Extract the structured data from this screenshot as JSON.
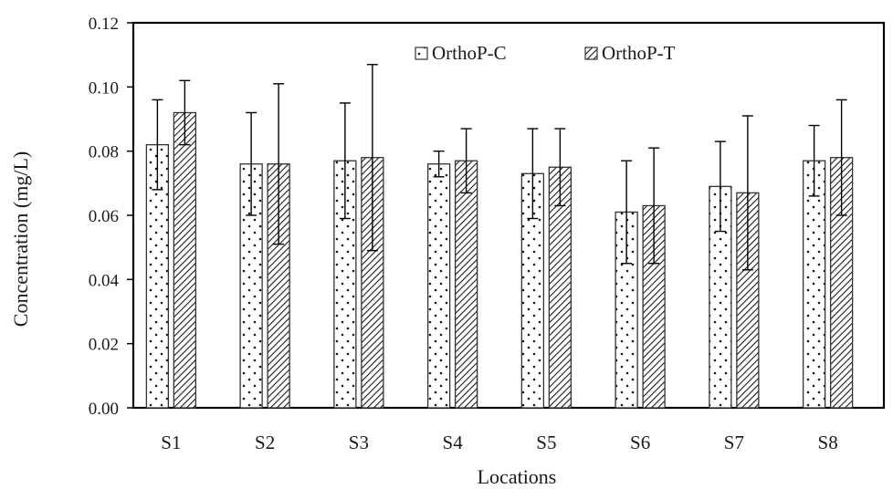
{
  "chart_data": {
    "type": "bar",
    "xlabel": "Locations",
    "ylabel": "Concentration (mg/L)",
    "ylim": [
      0,
      0.12
    ],
    "yticks": [
      "0.00",
      "0.02",
      "0.04",
      "0.06",
      "0.08",
      "0.10",
      "0.12"
    ],
    "grid": false,
    "legend_position": "top-right",
    "categories": [
      "S1",
      "S2",
      "S3",
      "S4",
      "S5",
      "S6",
      "S7",
      "S8"
    ],
    "series": [
      {
        "name": "OrthoP-C",
        "pattern": "dots",
        "values": [
          0.082,
          0.076,
          0.077,
          0.076,
          0.073,
          0.061,
          0.069,
          0.077
        ],
        "errors": [
          0.014,
          0.016,
          0.018,
          0.004,
          0.014,
          0.016,
          0.014,
          0.011
        ]
      },
      {
        "name": "OrthoP-T",
        "pattern": "diagonal-hatch",
        "values": [
          0.092,
          0.076,
          0.078,
          0.077,
          0.075,
          0.063,
          0.067,
          0.078
        ],
        "errors": [
          0.01,
          0.025,
          0.029,
          0.01,
          0.012,
          0.018,
          0.024,
          0.018
        ]
      }
    ],
    "colors": {
      "axis": "#000000",
      "bar_edge": "#333333",
      "pattern": "#1a1a1a",
      "fill": "#ffffff"
    }
  }
}
